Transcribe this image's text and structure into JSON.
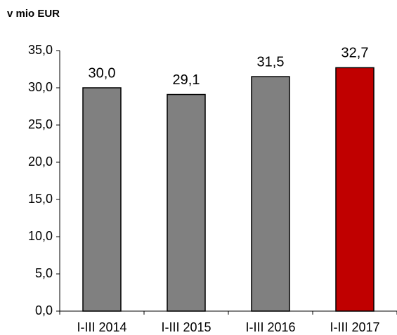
{
  "chart_data": {
    "type": "bar",
    "y_axis_label": "v mio EUR",
    "categories": [
      "I-III 2014",
      "I-III 2015",
      "I-III 2016",
      "I-III 2017"
    ],
    "values": [
      30.0,
      29.1,
      31.5,
      32.7
    ],
    "value_labels": [
      "30,0",
      "29,1",
      "31,5",
      "32,7"
    ],
    "colors": [
      "#808080",
      "#808080",
      "#808080",
      "#c00000"
    ],
    "ylim": [
      0,
      35
    ],
    "yticks": [
      {
        "value": 0,
        "label": "0,0"
      },
      {
        "value": 5,
        "label": "5,0"
      },
      {
        "value": 10,
        "label": "10,0"
      },
      {
        "value": 15,
        "label": "15,0"
      },
      {
        "value": 20,
        "label": "20,0"
      },
      {
        "value": 25,
        "label": "25,0"
      },
      {
        "value": 30,
        "label": "30,0"
      },
      {
        "value": 35,
        "label": "35,0"
      }
    ],
    "grid": false
  }
}
